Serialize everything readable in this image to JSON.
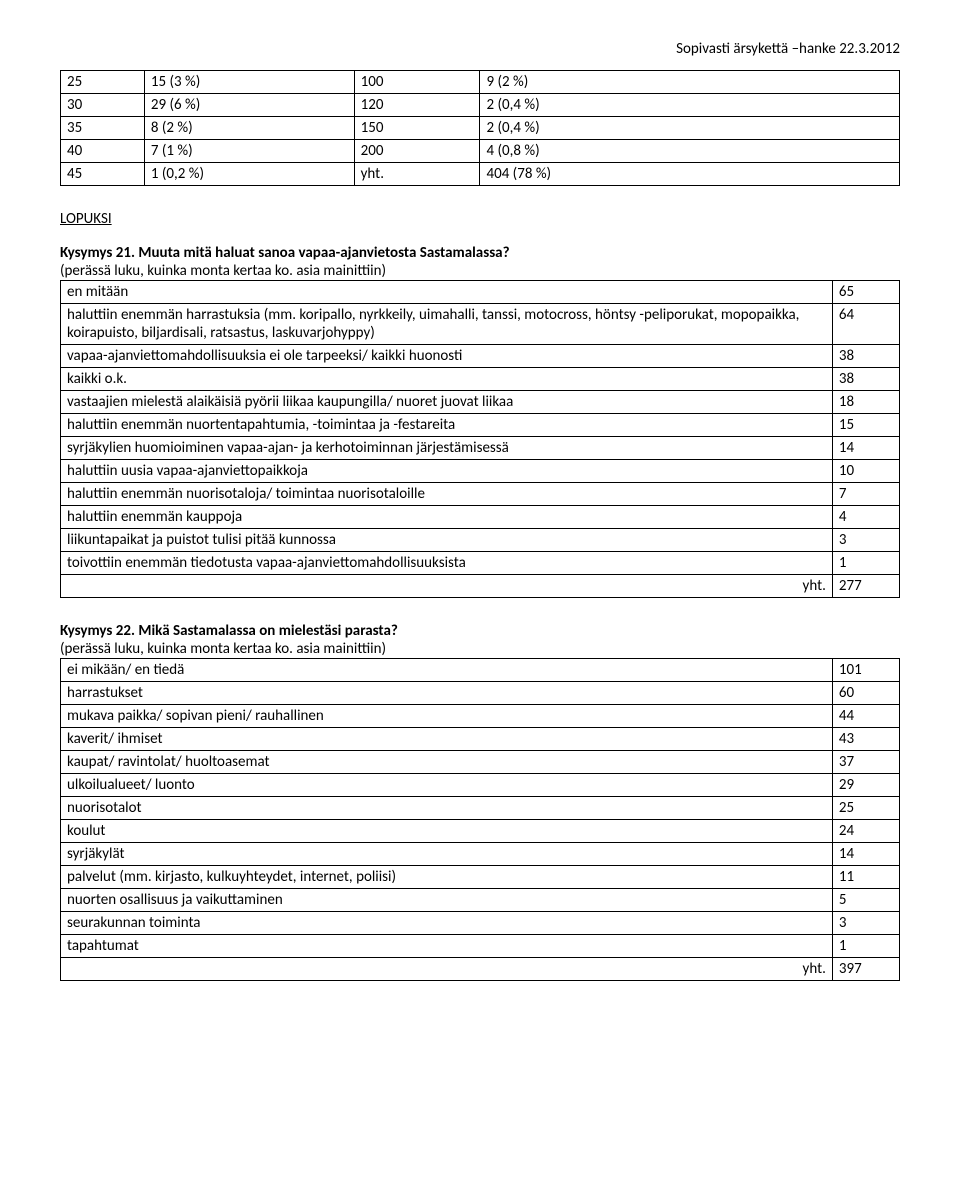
{
  "header": "Sopivasti ärsykettä –hanke 22.3.2012",
  "table1": {
    "rows": [
      [
        "25",
        "15 (3 %)",
        "100",
        "9 (2 %)"
      ],
      [
        "30",
        "29 (6 %)",
        "120",
        "2 (0,4 %)"
      ],
      [
        "35",
        "8 (2 %)",
        "150",
        "2 (0,4 %)"
      ],
      [
        "40",
        "7 (1 %)",
        "200",
        "4 (0,8 %)"
      ],
      [
        "45",
        "1 (0,2 %)",
        "yht.",
        "404 (78 %)"
      ]
    ]
  },
  "section_label": "LOPUKSI",
  "q21": {
    "title": "Kysymys 21. Muuta mitä haluat sanoa vapaa-ajanvietosta Sastamalassa?",
    "sub": "(perässä luku, kuinka monta kertaa ko. asia mainittiin)",
    "rows": [
      [
        "en mitään",
        "65"
      ],
      [
        "haluttiin enemmän harrastuksia (mm. koripallo, nyrkkeily, uimahalli, tanssi, motocross, höntsy -peliporukat, mopopaikka, koirapuisto, biljardisali, ratsastus, laskuvarjohyppy)",
        "64"
      ],
      [
        "vapaa-ajanviettomahdollisuuksia ei ole tarpeeksi/ kaikki huonosti",
        "38"
      ],
      [
        "kaikki o.k.",
        "38"
      ],
      [
        "vastaajien mielestä alaikäisiä pyörii liikaa kaupungilla/ nuoret juovat liikaa",
        "18"
      ],
      [
        "haluttiin enemmän nuortentapahtumia, -toimintaa ja -festareita",
        "15"
      ],
      [
        "syrjäkylien huomioiminen vapaa-ajan- ja kerhotoiminnan järjestämisessä",
        "14"
      ],
      [
        "haluttiin uusia vapaa-ajanviettopaikkoja",
        "10"
      ],
      [
        "haluttiin enemmän nuorisotaloja/ toimintaa nuorisotaloille",
        "7"
      ],
      [
        "haluttiin enemmän kauppoja",
        "4"
      ],
      [
        "liikuntapaikat ja puistot tulisi pitää kunnossa",
        "3"
      ],
      [
        "toivottiin enemmän tiedotusta vapaa-ajanviettomahdollisuuksista",
        "1"
      ]
    ],
    "total_label": "yht.",
    "total_value": "277"
  },
  "q22": {
    "title": "Kysymys 22. Mikä Sastamalassa on mielestäsi parasta?",
    "sub": "(perässä luku, kuinka monta kertaa ko. asia mainittiin)",
    "rows": [
      [
        "ei mikään/ en tiedä",
        "101"
      ],
      [
        "harrastukset",
        "60"
      ],
      [
        "mukava paikka/ sopivan pieni/ rauhallinen",
        "44"
      ],
      [
        "kaverit/ ihmiset",
        "43"
      ],
      [
        "kaupat/ ravintolat/ huoltoasemat",
        "37"
      ],
      [
        "ulkoilualueet/ luonto",
        "29"
      ],
      [
        "nuorisotalot",
        "25"
      ],
      [
        "koulut",
        "24"
      ],
      [
        "syrjäkylät",
        "14"
      ],
      [
        "palvelut (mm. kirjasto, kulkuyhteydet, internet, poliisi)",
        "11"
      ],
      [
        "nuorten osallisuus ja vaikuttaminen",
        "5"
      ],
      [
        "seurakunnan toiminta",
        "3"
      ],
      [
        "tapahtumat",
        "1"
      ]
    ],
    "total_label": "yht.",
    "total_value": "397"
  }
}
